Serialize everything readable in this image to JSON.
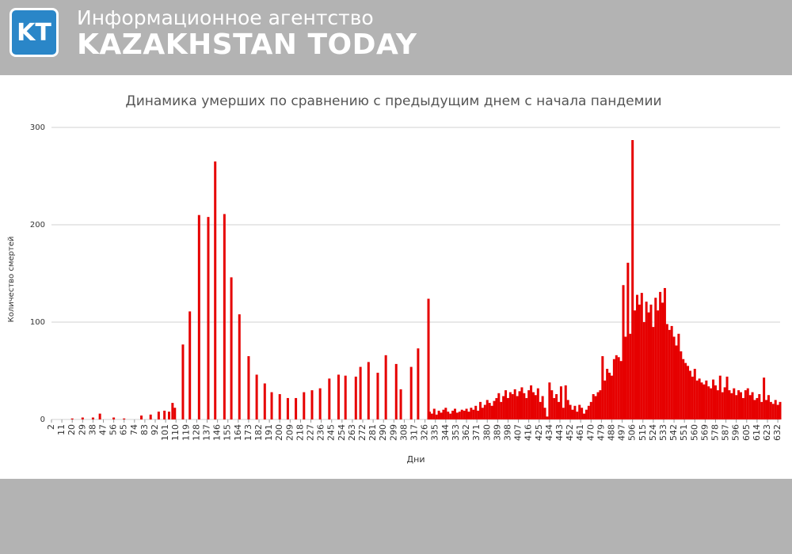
{
  "header": {
    "logo": "KT",
    "agency": "Информационное агентство",
    "brand": "KAZAKHSTAN TODAY"
  },
  "chart_data": {
    "type": "bar",
    "title": "Динамика умерших по сравнению с предыдущим днем с начала пандемии",
    "x_label": "Дни",
    "y_label": "Количество смертей",
    "color": "#e60000",
    "grid": true,
    "xlim": [
      2,
      634
    ],
    "ylim": [
      0,
      300
    ],
    "yticks": [
      0,
      100,
      200,
      300
    ],
    "xticks": [
      2,
      11,
      20,
      29,
      38,
      47,
      56,
      65,
      74,
      83,
      92,
      101,
      110,
      119,
      128,
      137,
      146,
      155,
      164,
      173,
      182,
      191,
      200,
      209,
      218,
      227,
      236,
      245,
      254,
      263,
      272,
      281,
      290,
      299,
      308,
      317,
      326,
      335,
      344,
      353,
      362,
      371,
      380,
      389,
      398,
      407,
      416,
      425,
      434,
      443,
      452,
      461,
      470,
      479,
      488,
      497,
      506,
      515,
      524,
      533,
      542,
      551,
      560,
      569,
      578,
      587,
      596,
      605,
      614,
      623,
      632
    ],
    "x": [
      20,
      29,
      38,
      44,
      56,
      65,
      80,
      88,
      95,
      100,
      104,
      107,
      109,
      116,
      122,
      130,
      138,
      144,
      152,
      158,
      165,
      173,
      180,
      187,
      193,
      200,
      207,
      214,
      221,
      228,
      235,
      243,
      251,
      257,
      266,
      270,
      277,
      285,
      292,
      301,
      305,
      314,
      320,
      329,
      330,
      332,
      334,
      336,
      338,
      340,
      342,
      344,
      346,
      348,
      350,
      352,
      354,
      356,
      358,
      360,
      362,
      364,
      366,
      368,
      370,
      372,
      374,
      376,
      378,
      380,
      382,
      384,
      386,
      388,
      390,
      392,
      394,
      396,
      398,
      400,
      402,
      404,
      406,
      408,
      410,
      412,
      414,
      416,
      418,
      420,
      422,
      424,
      426,
      428,
      430,
      432,
      434,
      436,
      438,
      440,
      442,
      444,
      446,
      448,
      450,
      452,
      454,
      456,
      458,
      460,
      462,
      464,
      466,
      468,
      470,
      472,
      474,
      476,
      478,
      480,
      482,
      484,
      486,
      488,
      490,
      492,
      494,
      496,
      498,
      500,
      502,
      504,
      506,
      508,
      510,
      512,
      514,
      516,
      518,
      520,
      522,
      524,
      526,
      528,
      530,
      532,
      534,
      536,
      538,
      540,
      542,
      544,
      546,
      548,
      550,
      552,
      554,
      556,
      558,
      560,
      562,
      564,
      566,
      568,
      570,
      572,
      574,
      576,
      578,
      580,
      582,
      584,
      586,
      588,
      590,
      592,
      594,
      596,
      598,
      600,
      602,
      604,
      606,
      608,
      610,
      612,
      614,
      616,
      618,
      620,
      622,
      624,
      626,
      628,
      630,
      632,
      634
    ],
    "values": [
      1,
      2,
      2,
      6,
      2,
      1,
      4,
      5,
      8,
      9,
      8,
      17,
      12,
      77,
      111,
      210,
      208,
      265,
      211,
      146,
      108,
      65,
      46,
      37,
      28,
      26,
      22,
      22,
      28,
      30,
      32,
      42,
      46,
      45,
      44,
      54,
      59,
      48,
      66,
      57,
      31,
      54,
      73,
      124,
      8,
      6,
      11,
      5,
      9,
      7,
      10,
      12,
      8,
      6,
      9,
      11,
      7,
      8,
      10,
      9,
      11,
      8,
      12,
      10,
      14,
      9,
      18,
      12,
      15,
      20,
      17,
      14,
      19,
      22,
      27,
      18,
      24,
      30,
      22,
      28,
      26,
      31,
      24,
      29,
      33,
      27,
      22,
      30,
      35,
      28,
      25,
      32,
      18,
      24,
      12,
      3,
      38,
      30,
      22,
      26,
      18,
      34,
      12,
      35,
      20,
      15,
      10,
      14,
      8,
      15,
      12,
      6,
      10,
      14,
      18,
      26,
      24,
      28,
      30,
      65,
      40,
      52,
      48,
      45,
      62,
      66,
      64,
      60,
      138,
      85,
      161,
      88,
      287,
      112,
      128,
      118,
      130,
      100,
      121,
      110,
      118,
      95,
      125,
      112,
      131,
      120,
      135,
      98,
      92,
      96,
      85,
      76,
      88,
      70,
      62,
      58,
      55,
      50,
      44,
      52,
      40,
      42,
      38,
      36,
      40,
      34,
      32,
      41,
      35,
      30,
      45,
      28,
      33,
      44,
      30,
      27,
      32,
      25,
      30,
      28,
      22,
      30,
      32,
      25,
      28,
      20,
      22,
      26,
      18,
      43,
      20,
      25,
      18,
      16,
      20,
      15,
      18
    ]
  }
}
